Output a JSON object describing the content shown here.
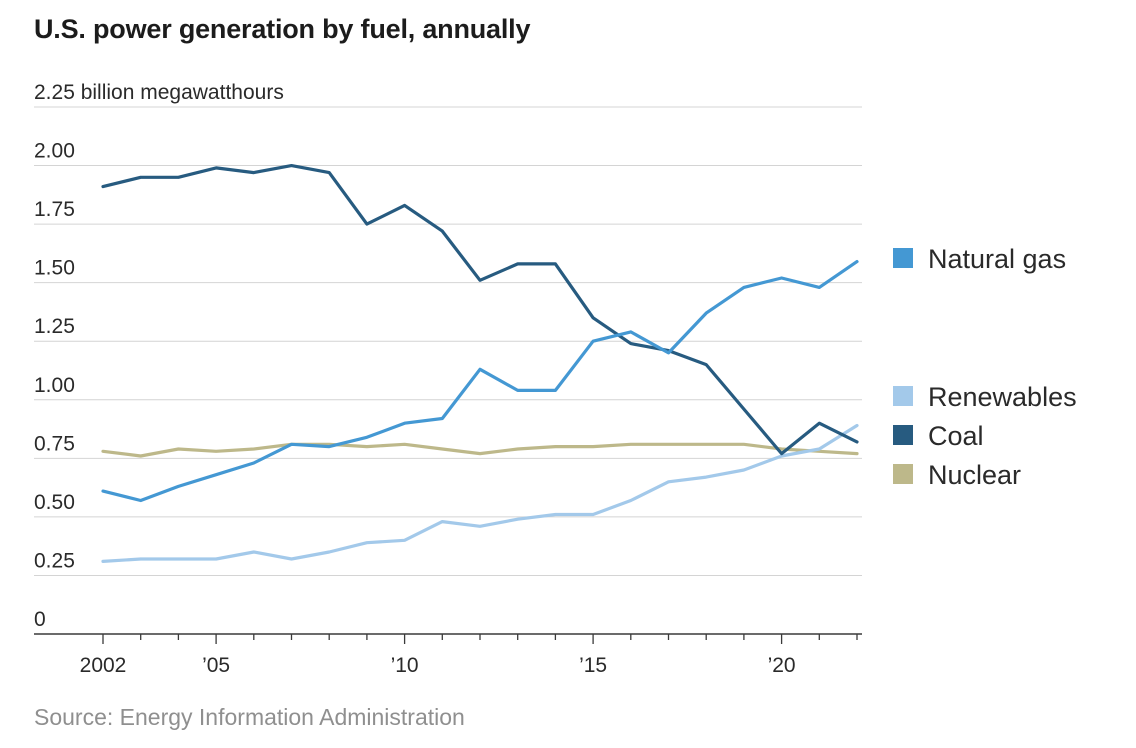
{
  "title": "U.S. power generation by fuel, annually",
  "source": "Source: Energy Information Administration",
  "chart_data": {
    "type": "line",
    "title": "U.S. power generation by fuel, annually",
    "ylabel": "2.25 billion megawatthours",
    "xlabel": "",
    "ylim": [
      0,
      2.25
    ],
    "xlim": [
      2002,
      2022
    ],
    "y_ticks": [
      {
        "value": 0,
        "label": "0"
      },
      {
        "value": 0.25,
        "label": "0.25"
      },
      {
        "value": 0.5,
        "label": "0.50"
      },
      {
        "value": 0.75,
        "label": "0.75"
      },
      {
        "value": 1.0,
        "label": "1.00"
      },
      {
        "value": 1.25,
        "label": "1.25"
      },
      {
        "value": 1.5,
        "label": "1.50"
      },
      {
        "value": 1.75,
        "label": "1.75"
      },
      {
        "value": 2.0,
        "label": "2.00"
      },
      {
        "value": 2.25,
        "label": "2.25 billion megawatthours"
      }
    ],
    "x_ticks": [
      {
        "value": 2002,
        "label": "2002"
      },
      {
        "value": 2005,
        "label": "’05"
      },
      {
        "value": 2010,
        "label": "’10"
      },
      {
        "value": 2015,
        "label": "’15"
      },
      {
        "value": 2020,
        "label": "’20"
      }
    ],
    "x": [
      2002,
      2003,
      2004,
      2005,
      2006,
      2007,
      2008,
      2009,
      2010,
      2011,
      2012,
      2013,
      2014,
      2015,
      2016,
      2017,
      2018,
      2019,
      2020,
      2021,
      2022
    ],
    "series": [
      {
        "name": "Nuclear",
        "color": "#bdb88a",
        "values": [
          0.78,
          0.76,
          0.79,
          0.78,
          0.79,
          0.81,
          0.81,
          0.8,
          0.81,
          0.79,
          0.77,
          0.79,
          0.8,
          0.8,
          0.81,
          0.81,
          0.81,
          0.81,
          0.79,
          0.78,
          0.77
        ]
      },
      {
        "name": "Renewables",
        "color": "#a3c9ea",
        "values": [
          0.31,
          0.32,
          0.32,
          0.32,
          0.35,
          0.32,
          0.35,
          0.39,
          0.4,
          0.48,
          0.46,
          0.49,
          0.51,
          0.51,
          0.57,
          0.65,
          0.67,
          0.7,
          0.76,
          0.79,
          0.89
        ]
      },
      {
        "name": "Coal",
        "color": "#275b80",
        "values": [
          1.91,
          1.95,
          1.95,
          1.99,
          1.97,
          2.0,
          1.97,
          1.75,
          1.83,
          1.72,
          1.51,
          1.58,
          1.58,
          1.35,
          1.24,
          1.21,
          1.15,
          0.96,
          0.77,
          0.9,
          0.82
        ]
      },
      {
        "name": "Natural gas",
        "color": "#4498d3",
        "values": [
          0.61,
          0.57,
          0.63,
          0.68,
          0.73,
          0.81,
          0.8,
          0.84,
          0.9,
          0.92,
          1.13,
          1.04,
          1.04,
          1.25,
          1.29,
          1.2,
          1.37,
          1.48,
          1.52,
          1.48,
          1.59
        ]
      }
    ],
    "legend": [
      {
        "name": "Natural gas",
        "color": "#4498d3"
      },
      {
        "name": "Renewables",
        "color": "#a3c9ea"
      },
      {
        "name": "Coal",
        "color": "#275b80"
      },
      {
        "name": "Nuclear",
        "color": "#bdb88a"
      }
    ],
    "legend_position": "right",
    "grid": true
  }
}
